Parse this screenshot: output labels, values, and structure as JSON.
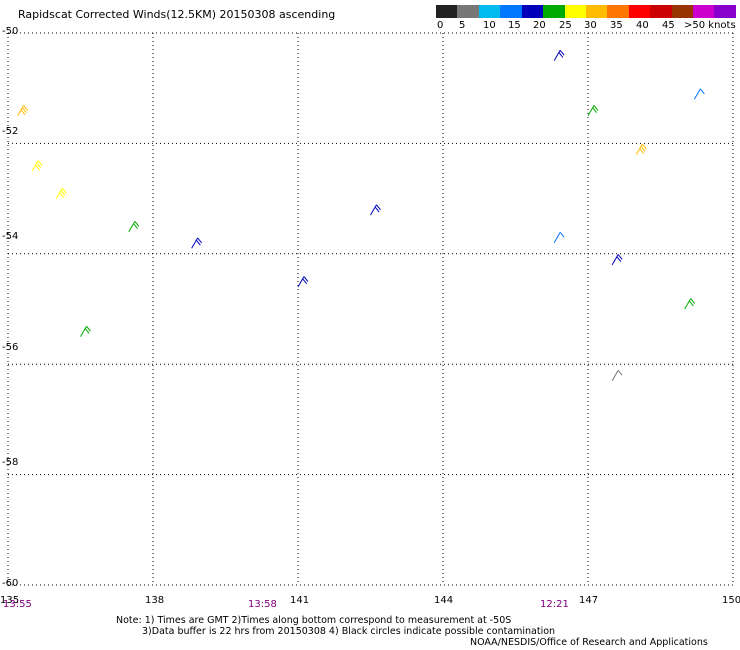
{
  "title": "Rapidscat Corrected Winds(12.5KM) 20150308 ascending",
  "scale": {
    "labels": [
      "0",
      "5",
      "10",
      "15",
      "20",
      "25",
      "30",
      "35",
      "40",
      "45",
      ">50 knots"
    ],
    "colors": [
      "#222222",
      "#777777",
      "#00bbee",
      "#0077ff",
      "#0000bb",
      "#00aa00",
      "#ffff00",
      "#ffbb00",
      "#ff7700",
      "#ff0000",
      "#cc0000",
      "#993300",
      "#cc00cc",
      "#8800cc"
    ]
  },
  "axes": {
    "lon_labels": [
      "135",
      "138",
      "141",
      "144",
      "147",
      "150"
    ],
    "lat_labels": [
      "-50",
      "-52",
      "-54",
      "-56",
      "-58",
      "-60"
    ]
  },
  "times": [
    "13:55",
    "13:58",
    "12:21"
  ],
  "notes": [
    "Note: 1) Times are GMT 2)Times along bottom correspond to measurement at -50S",
    "3)Data buffer is 22 hrs from 20150308 4) Black circles indicate possible contamination",
    "NOAA/NESDIS/Office of Research and Applications"
  ],
  "map_data": {
    "lon_range": [
      135,
      150
    ],
    "lat_range": [
      -60,
      -50
    ],
    "wind_barbs": [
      {
        "lon": 135.2,
        "lat": -51.5,
        "speed_kt": 30,
        "dir_deg": 300
      },
      {
        "lon": 135.5,
        "lat": -52.5,
        "speed_kt": 25,
        "dir_deg": 300
      },
      {
        "lon": 136.0,
        "lat": -53.0,
        "speed_kt": 25,
        "dir_deg": 300
      },
      {
        "lon": 137.5,
        "lat": -53.6,
        "speed_kt": 22,
        "dir_deg": 300
      },
      {
        "lon": 138.8,
        "lat": -53.9,
        "speed_kt": 18,
        "dir_deg": 300
      },
      {
        "lon": 141.0,
        "lat": -54.6,
        "speed_kt": 18,
        "dir_deg": 300
      },
      {
        "lon": 142.5,
        "lat": -53.3,
        "speed_kt": 18,
        "dir_deg": 300
      },
      {
        "lon": 136.5,
        "lat": -55.5,
        "speed_kt": 22,
        "dir_deg": 300
      },
      {
        "lon": 146.3,
        "lat": -50.5,
        "speed_kt": 18,
        "dir_deg": 300
      },
      {
        "lon": 147.0,
        "lat": -51.5,
        "speed_kt": 22,
        "dir_deg": 300
      },
      {
        "lon": 148.0,
        "lat": -52.2,
        "speed_kt": 28,
        "dir_deg": 300
      },
      {
        "lon": 149.2,
        "lat": -51.2,
        "speed_kt": 13,
        "dir_deg": 300
      },
      {
        "lon": 146.3,
        "lat": -53.8,
        "speed_kt": 13,
        "dir_deg": 300
      },
      {
        "lon": 147.5,
        "lat": -54.2,
        "speed_kt": 18,
        "dir_deg": 300
      },
      {
        "lon": 149.0,
        "lat": -55.0,
        "speed_kt": 22,
        "dir_deg": 300
      },
      {
        "lon": 147.5,
        "lat": -56.3,
        "speed_kt": 5,
        "dir_deg": 300
      }
    ]
  }
}
